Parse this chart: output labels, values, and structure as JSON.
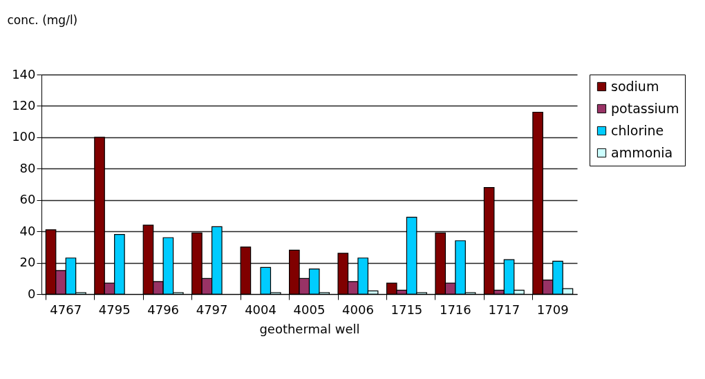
{
  "chart_data": {
    "type": "bar",
    "xlabel": "geothermal well",
    "ylabel": "conc. (mg/l)",
    "categories": [
      "4767",
      "4795",
      "4796",
      "4797",
      "4004",
      "4005",
      "4006",
      "1715",
      "1716",
      "1717",
      "1709"
    ],
    "series": [
      {
        "name": "sodium",
        "color": "#800000",
        "values": [
          41,
          100,
          44,
          39,
          30,
          28,
          26,
          7,
          39,
          68,
          116
        ]
      },
      {
        "name": "potassium",
        "color": "#993366",
        "values": [
          15,
          7,
          8,
          10,
          null,
          10,
          8,
          2.5,
          7,
          2.5,
          9
        ]
      },
      {
        "name": "chlorine",
        "color": "#00ccff",
        "values": [
          23,
          38,
          36,
          43,
          17,
          16,
          23,
          49,
          34,
          22,
          21
        ]
      },
      {
        "name": "ammonia",
        "color": "#ccffff",
        "values": [
          1,
          null,
          1,
          null,
          1,
          1,
          2,
          1,
          1,
          2.5,
          3.5
        ]
      }
    ],
    "ylim": [
      0,
      140
    ],
    "yticks": [
      0,
      20,
      40,
      60,
      80,
      100,
      120,
      140
    ],
    "grid": "y",
    "legend": "right"
  }
}
